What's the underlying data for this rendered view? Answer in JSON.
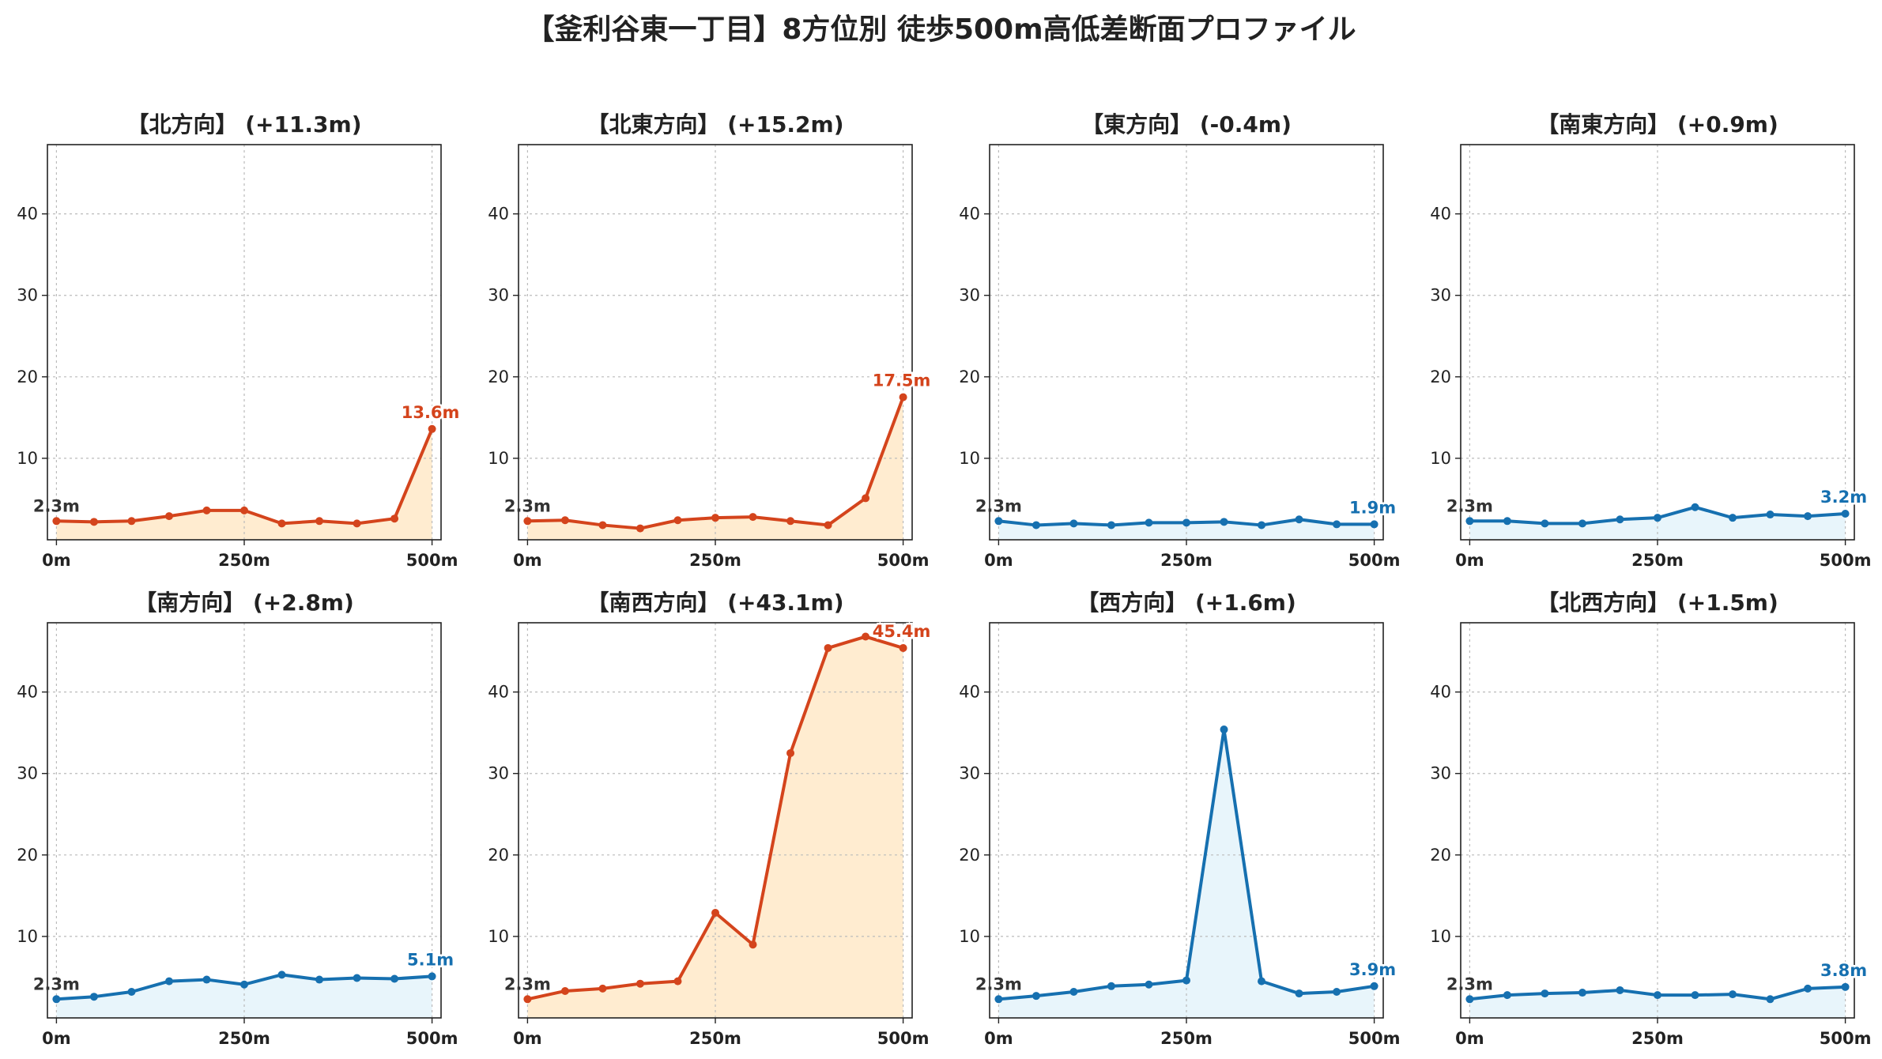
{
  "title": "【釜利谷東一丁目】8方位別 徒歩500m高低差断面プロファイル",
  "colors": {
    "up_line": "#D4441C",
    "up_fill": "#FFECD0",
    "flat_line": "#1670B0",
    "flat_fill": "#E8F5FB",
    "start_label": "#333333",
    "grid": "#bbbbbb"
  },
  "chart_data": [
    {
      "type": "line",
      "title": "【北方向】 (+11.3m)",
      "trend": "up",
      "x": [
        0,
        50,
        100,
        150,
        200,
        250,
        300,
        350,
        400,
        450,
        500
      ],
      "y": [
        2.3,
        2.2,
        2.3,
        2.9,
        3.6,
        3.6,
        2.0,
        2.3,
        2.0,
        2.6,
        13.6
      ],
      "start_label": "2.3m",
      "end_label": "13.6m",
      "xticks": [
        "0m",
        "250m",
        "500m"
      ],
      "yticks": [
        10,
        20,
        30,
        40
      ],
      "ylim": [
        0,
        48.5
      ],
      "xlim": [
        -12,
        512
      ],
      "grid": true
    },
    {
      "type": "line",
      "title": "【北東方向】 (+15.2m)",
      "trend": "up",
      "x": [
        0,
        50,
        100,
        150,
        200,
        250,
        300,
        350,
        400,
        450,
        500
      ],
      "y": [
        2.3,
        2.4,
        1.8,
        1.4,
        2.4,
        2.7,
        2.8,
        2.3,
        1.8,
        5.1,
        17.5
      ],
      "start_label": "2.3m",
      "end_label": "17.5m",
      "xticks": [
        "0m",
        "250m",
        "500m"
      ],
      "yticks": [
        10,
        20,
        30,
        40
      ],
      "ylim": [
        0,
        48.5
      ],
      "xlim": [
        -12,
        512
      ],
      "grid": true
    },
    {
      "type": "line",
      "title": "【東方向】 (-0.4m)",
      "trend": "flat",
      "x": [
        0,
        50,
        100,
        150,
        200,
        250,
        300,
        350,
        400,
        450,
        500
      ],
      "y": [
        2.3,
        1.8,
        2.0,
        1.8,
        2.1,
        2.1,
        2.2,
        1.8,
        2.5,
        1.9,
        1.9
      ],
      "start_label": "2.3m",
      "end_label": "1.9m",
      "xticks": [
        "0m",
        "250m",
        "500m"
      ],
      "yticks": [
        10,
        20,
        30,
        40
      ],
      "ylim": [
        0,
        48.5
      ],
      "xlim": [
        -12,
        512
      ],
      "grid": true
    },
    {
      "type": "line",
      "title": "【南東方向】 (+0.9m)",
      "trend": "flat",
      "x": [
        0,
        50,
        100,
        150,
        200,
        250,
        300,
        350,
        400,
        450,
        500
      ],
      "y": [
        2.3,
        2.3,
        2.0,
        2.0,
        2.5,
        2.7,
        4.0,
        2.7,
        3.1,
        2.9,
        3.2
      ],
      "start_label": "2.3m",
      "end_label": "3.2m",
      "xticks": [
        "0m",
        "250m",
        "500m"
      ],
      "yticks": [
        10,
        20,
        30,
        40
      ],
      "ylim": [
        0,
        48.5
      ],
      "xlim": [
        -12,
        512
      ],
      "grid": true
    },
    {
      "type": "line",
      "title": "【南方向】 (+2.8m)",
      "trend": "flat",
      "x": [
        0,
        50,
        100,
        150,
        200,
        250,
        300,
        350,
        400,
        450,
        500
      ],
      "y": [
        2.3,
        2.6,
        3.2,
        4.5,
        4.7,
        4.1,
        5.3,
        4.7,
        4.9,
        4.8,
        5.1
      ],
      "start_label": "2.3m",
      "end_label": "5.1m",
      "xticks": [
        "0m",
        "250m",
        "500m"
      ],
      "yticks": [
        10,
        20,
        30,
        40
      ],
      "ylim": [
        0,
        48.5
      ],
      "xlim": [
        -12,
        512
      ],
      "grid": true
    },
    {
      "type": "line",
      "title": "【南西方向】 (+43.1m)",
      "trend": "up",
      "x": [
        0,
        50,
        100,
        150,
        200,
        250,
        300,
        350,
        400,
        450,
        500
      ],
      "y": [
        2.3,
        3.3,
        3.6,
        4.2,
        4.5,
        12.9,
        9.0,
        32.5,
        45.4,
        46.8,
        45.4
      ],
      "start_label": "2.3m",
      "end_label": "45.4m",
      "xticks": [
        "0m",
        "250m",
        "500m"
      ],
      "yticks": [
        10,
        20,
        30,
        40
      ],
      "ylim": [
        0,
        48.5
      ],
      "xlim": [
        -12,
        512
      ],
      "grid": true
    },
    {
      "type": "line",
      "title": "【西方向】 (+1.6m)",
      "trend": "flat",
      "x": [
        0,
        50,
        100,
        150,
        200,
        250,
        300,
        350,
        400,
        450,
        500
      ],
      "y": [
        2.3,
        2.7,
        3.2,
        3.9,
        4.1,
        4.6,
        35.4,
        4.5,
        3.0,
        3.2,
        3.9
      ],
      "start_label": "2.3m",
      "end_label": "3.9m",
      "xticks": [
        "0m",
        "250m",
        "500m"
      ],
      "yticks": [
        10,
        20,
        30,
        40
      ],
      "ylim": [
        0,
        48.5
      ],
      "xlim": [
        -12,
        512
      ],
      "grid": true
    },
    {
      "type": "line",
      "title": "【北西方向】 (+1.5m)",
      "trend": "flat",
      "x": [
        0,
        50,
        100,
        150,
        200,
        250,
        300,
        350,
        400,
        450,
        500
      ],
      "y": [
        2.3,
        2.8,
        3.0,
        3.1,
        3.4,
        2.8,
        2.8,
        2.9,
        2.3,
        3.6,
        3.8
      ],
      "start_label": "2.3m",
      "end_label": "3.8m",
      "xticks": [
        "0m",
        "250m",
        "500m"
      ],
      "yticks": [
        10,
        20,
        30,
        40
      ],
      "ylim": [
        0,
        48.5
      ],
      "xlim": [
        -12,
        512
      ],
      "grid": true
    }
  ]
}
